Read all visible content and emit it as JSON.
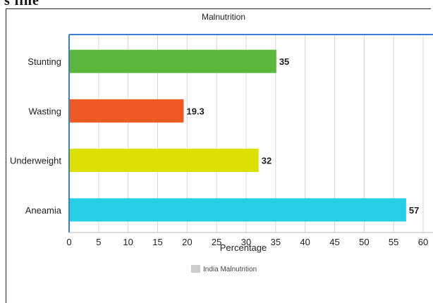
{
  "top_fragment": "s line",
  "chart_data": {
    "type": "bar",
    "orientation": "horizontal",
    "title": "Malnutrition",
    "xlabel": "Percentage",
    "ylabel": "",
    "categories": [
      "Stunting",
      "Wasting",
      "Underweight",
      "Aneamia"
    ],
    "series": [
      {
        "name": "India Malnutrition",
        "values": [
          35,
          19.3,
          32,
          57
        ],
        "colors": [
          "#5cb63b",
          "#ee5a24",
          "#dbe000",
          "#26cfe6"
        ]
      }
    ],
    "data_labels": [
      "35",
      "19.3",
      "32",
      "57"
    ],
    "xlim": [
      0,
      60
    ],
    "x_ticks": [
      0,
      5,
      10,
      15,
      20,
      25,
      30,
      35,
      40,
      45,
      50,
      55,
      60
    ],
    "x_tick_labels": [
      "0",
      "5",
      "10",
      "15",
      "20",
      "25",
      "30",
      "35",
      "40",
      "45",
      "50",
      "55",
      "60"
    ],
    "grid": "vertical",
    "legend": {
      "position": "bottom-center",
      "swatch_color": "#cccccc"
    },
    "plot_border_color": "#3a7fd0",
    "grid_color": "#d8d8d8"
  }
}
